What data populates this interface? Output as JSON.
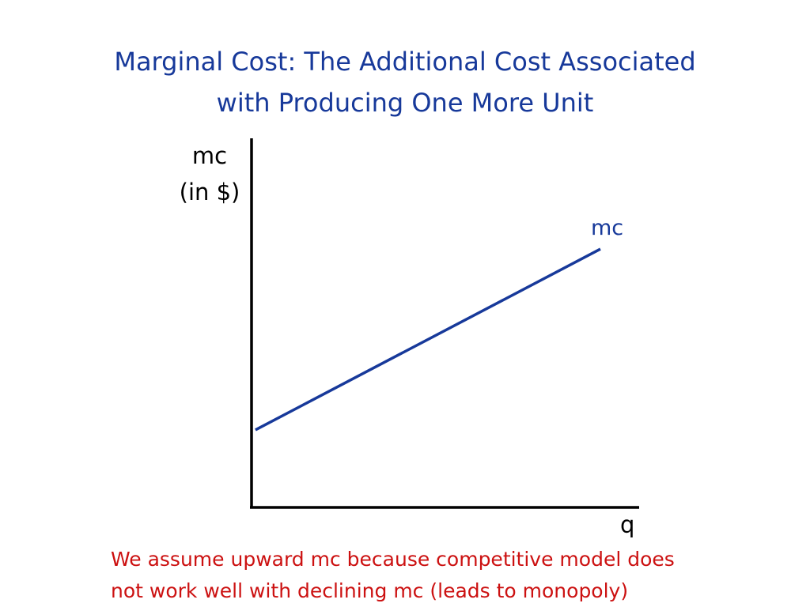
{
  "slide": {
    "title_lines": [
      "Marginal Cost: The Additional Cost Associated",
      "with Producing One More Unit"
    ],
    "footnote_lines": [
      "We assume upward mc because competitive model does",
      "not work well with declining mc (leads to monopoly)"
    ]
  },
  "colors": {
    "title": "#17399a",
    "line": "#17399a",
    "axis": "#000000",
    "footnote": "#cc1111"
  },
  "chart_data": {
    "type": "line",
    "title": "",
    "ylabel_lines": [
      "mc",
      "(in $)"
    ],
    "xlabel": "q",
    "xlim": [
      0,
      10
    ],
    "ylim": [
      0,
      10
    ],
    "grid": false,
    "axis_ticks": false,
    "series": [
      {
        "name": "mc",
        "points": [
          [
            0.1,
            2.1
          ],
          [
            9.0,
            7.0
          ]
        ]
      }
    ]
  }
}
